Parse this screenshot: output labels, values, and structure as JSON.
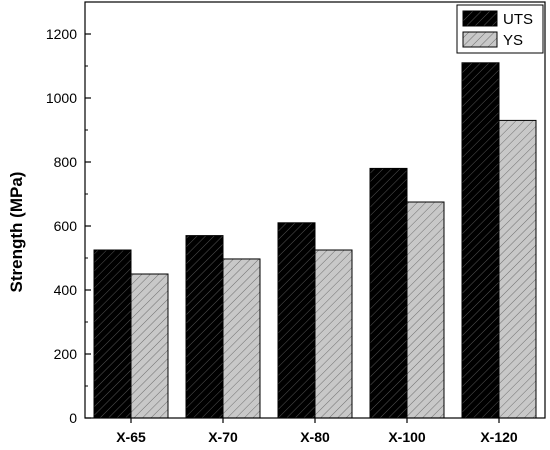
{
  "chart_data": {
    "type": "bar",
    "categories": [
      "X-65",
      "X-70",
      "X-80",
      "X-100",
      "X-120"
    ],
    "series": [
      {
        "name": "UTS",
        "values": [
          525,
          570,
          610,
          780,
          1110
        ],
        "color": "#000000",
        "hatch_color": "#555555"
      },
      {
        "name": "YS",
        "values": [
          450,
          497,
          525,
          675,
          930
        ],
        "color": "#c8c8c8",
        "hatch_color": "#6e6e6e"
      }
    ],
    "xlabel": "",
    "ylabel": "Strength (MPa)",
    "ylim": [
      0,
      1300
    ],
    "yticks": [
      0,
      200,
      400,
      600,
      800,
      1000,
      1200
    ],
    "grid": false,
    "legend_position": "top-right"
  }
}
